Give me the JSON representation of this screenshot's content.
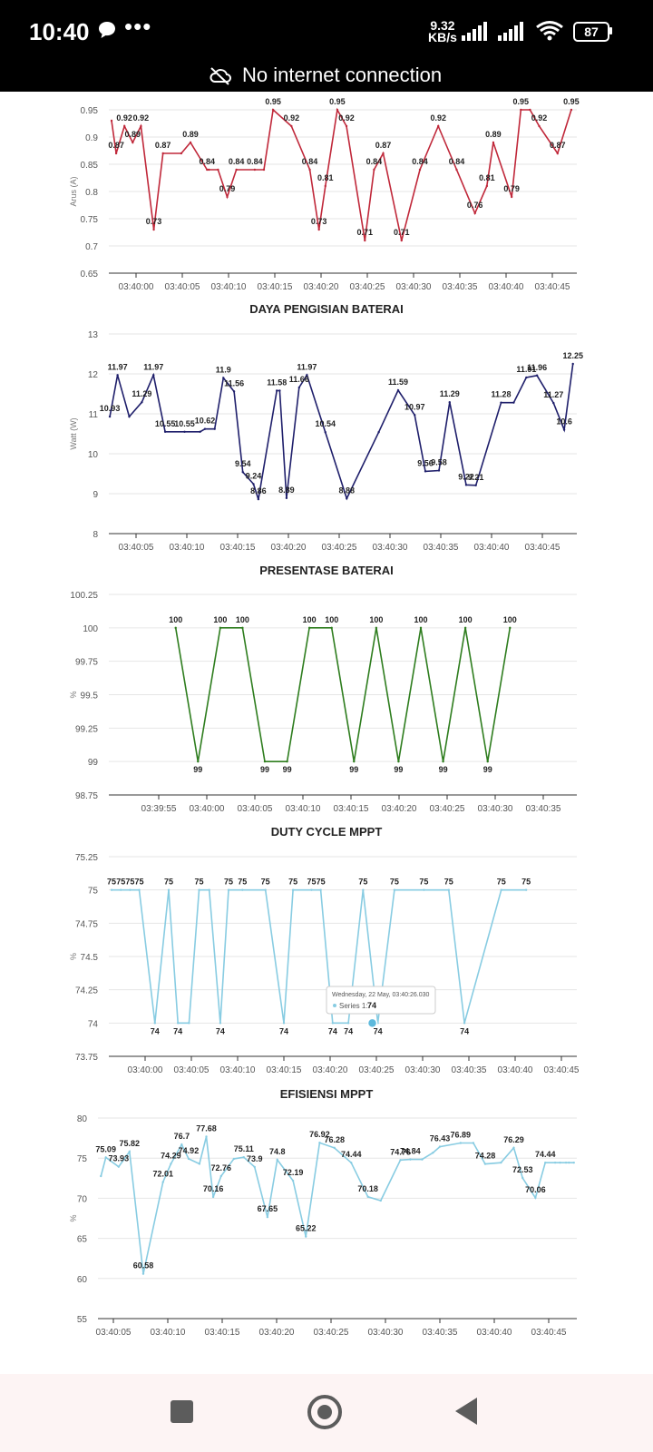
{
  "status_bar": {
    "time": "10:40",
    "net_speed_value": "9.32",
    "net_speed_unit": "KB/s",
    "battery_level": "87",
    "icons": [
      "message-icon",
      "more-dots-icon",
      "signal-icon",
      "signal-icon",
      "wifi-icon",
      "battery-icon"
    ]
  },
  "network_banner": {
    "text": "No internet connection",
    "icon": "cloud-off-icon"
  },
  "chart_data": [
    {
      "type": "line",
      "title": "",
      "ylabel": "Arus (A)",
      "color": "#c0283a",
      "ylim": [
        0.65,
        0.95
      ],
      "yticks": [
        "0.95",
        "0.9",
        "0.85",
        "0.8",
        "0.75",
        "0.7",
        "0.65"
      ],
      "xticks": [
        "03:40:00",
        "03:40:05",
        "03:40:10",
        "03:40:15",
        "03:40:20",
        "03:40:25",
        "03:40:30",
        "03:40:35",
        "03:40:40",
        "03:40:45"
      ],
      "x_range": [
        -2.9,
        48.1
      ],
      "x": [
        -2.6,
        -2.1,
        -1.2,
        -0.3,
        0.6,
        2,
        3,
        5,
        6,
        7.8,
        8,
        9,
        10,
        11,
        13,
        14,
        15,
        17,
        19,
        20,
        20.7,
        22,
        23,
        25,
        26,
        27,
        29,
        31,
        33,
        35,
        37,
        38.3,
        39,
        41,
        42,
        43,
        44,
        46,
        47.5
      ],
      "values": [
        0.93,
        0.87,
        0.92,
        0.89,
        0.92,
        0.73,
        0.87,
        0.87,
        0.89,
        0.84,
        0.84,
        0.84,
        0.79,
        0.84,
        0.84,
        0.84,
        0.95,
        0.92,
        0.84,
        0.73,
        0.81,
        0.95,
        0.92,
        0.71,
        0.84,
        0.87,
        0.71,
        0.84,
        0.92,
        0.84,
        0.76,
        0.81,
        0.89,
        0.79,
        0.95,
        0.95,
        0.92,
        0.87,
        0.95
      ],
      "labels": [
        "",
        "0.87",
        "0.92",
        "0.89",
        "0.92",
        "0.73",
        "0.87",
        "",
        "0.89",
        "0.84",
        "",
        "",
        "0.79",
        "0.84",
        "0.84",
        "",
        "0.95",
        "0.92",
        "0.84",
        "0.73",
        "0.81",
        "0.95",
        "0.92",
        "0.71",
        "0.84",
        "0.87",
        "0.71",
        "0.84",
        "0.92",
        "0.84",
        "0.76",
        "0.81",
        "0.89",
        "0.79",
        "0.95",
        "",
        "0.92",
        "0.87",
        "0.95"
      ]
    },
    {
      "type": "line",
      "title": "DAYA PENGISIAN BATERAI",
      "ylabel": "Watt (W)",
      "color": "#1f1f6b",
      "ylim": [
        8,
        13
      ],
      "yticks": [
        "13",
        "12",
        "11",
        "10",
        "9",
        "8"
      ],
      "xticks": [
        "03:40:05",
        "03:40:10",
        "03:40:15",
        "03:40:20",
        "03:40:25",
        "03:40:30",
        "03:40:35",
        "03:40:40",
        "03:40:45"
      ],
      "x_range": [
        0.4,
        48.6
      ],
      "x": [
        0.5,
        1.3,
        2.5,
        3.8,
        5,
        6.2,
        8.2,
        9.8,
        10.3,
        11.3,
        12.2,
        13.3,
        14.2,
        15.3,
        15.8,
        17.7,
        18,
        18.7,
        20,
        20.8,
        22.7,
        24.9,
        28.2,
        30.2,
        31.9,
        33,
        34.4,
        35.5,
        37.2,
        38.2,
        40.8,
        42.1,
        43.4,
        44.5,
        46.2,
        47.3,
        48.2
      ],
      "values": [
        10.93,
        11.97,
        10.93,
        11.29,
        11.97,
        10.55,
        10.55,
        10.55,
        10.62,
        10.62,
        11.9,
        11.56,
        9.54,
        9.24,
        8.86,
        11.58,
        11.58,
        8.89,
        11.66,
        11.97,
        10.54,
        8.88,
        10.54,
        11.59,
        10.97,
        9.56,
        9.58,
        11.29,
        9.22,
        9.21,
        11.28,
        11.28,
        11.91,
        11.96,
        11.27,
        10.6,
        12.25
      ],
      "labels": [
        "10.93",
        "11.97",
        "",
        "11.29",
        "11.97",
        "10.55",
        "10.55",
        "",
        "10.62",
        "",
        "11.9",
        "11.56",
        "9.54",
        "9.24",
        "8.86",
        "11.58",
        "",
        "8.89",
        "11.66",
        "11.97",
        "10.54",
        "8.88",
        "",
        "11.59",
        "10.97",
        "9.56",
        "9.58",
        "11.29",
        "9.22",
        "9.21",
        "11.28",
        "",
        "11.91",
        "11.96",
        "11.27",
        "10.6",
        "12.25"
      ]
    },
    {
      "type": "line",
      "title": "PRESENTASE BATERAI",
      "ylabel": "%",
      "color": "#2e7d1e",
      "ylim": [
        98.75,
        100.25
      ],
      "yticks": [
        "100.25",
        "100",
        "99.75",
        "99.5",
        "99.25",
        "99",
        "98.75"
      ],
      "xticks": [
        "03:39:55",
        "03:40:00",
        "03:40:05",
        "03:40:10",
        "03:40:15",
        "03:40:20",
        "03:40:25",
        "03:40:30",
        "03:40:35"
      ],
      "x_range": [
        -61.3,
        -59.2
      ],
      "x": [
        -61.0,
        -60.9,
        -60.8,
        -60.7,
        -60.6,
        -60.5,
        -60.4,
        -60.3,
        -60.2,
        -60.1,
        -60.0,
        -59.9,
        -59.8,
        -59.7,
        -59.6,
        -59.5
      ],
      "values": [
        100,
        99,
        100,
        100,
        99,
        99,
        100,
        100,
        99,
        100,
        99,
        100,
        99,
        100,
        99,
        100
      ],
      "labels": [
        "100",
        "99",
        "100",
        "100",
        "99",
        "99",
        "100",
        "100",
        "99",
        "100",
        "99",
        "100",
        "99",
        "100",
        "99",
        "100"
      ]
    },
    {
      "type": "line",
      "title": "DUTY CYCLE MPPT",
      "ylabel": "%",
      "color": "#88cce2",
      "ylim": [
        73.75,
        75.25
      ],
      "yticks": [
        "75.25",
        "75",
        "74.75",
        "74.5",
        "74.25",
        "74",
        "73.75"
      ],
      "xticks": [
        "03:40:00",
        "03:40:05",
        "03:40:10",
        "03:40:15",
        "03:40:20",
        "03:40:25",
        "03:40:30",
        "03:40:35",
        "03:40:40",
        "03:40:45"
      ],
      "x_range": [
        -2.5,
        48.3
      ],
      "x": [
        -2.2,
        -1.2,
        -0.2,
        0.8,
        2.5,
        4,
        5,
        6.2,
        7.3,
        8.4,
        9.6,
        10.5,
        12,
        14.5,
        16.5,
        17.5,
        19.5,
        20.5,
        21.8,
        23.5,
        25.1,
        26.7,
        28.5,
        31.7,
        34.4,
        36.1,
        40.1,
        42.8
      ],
      "values": [
        75,
        75,
        75,
        75,
        74,
        75,
        74,
        74,
        75,
        75,
        74,
        75,
        75,
        75,
        74,
        75,
        75,
        75,
        74,
        74,
        75,
        74,
        75,
        75,
        75,
        74,
        75,
        75
      ],
      "labels": [
        "75",
        "75",
        "75",
        "75",
        "74",
        "75",
        "74",
        "",
        "75",
        "",
        "74",
        "75",
        "75",
        "75",
        "74",
        "75",
        "75",
        "75",
        "74",
        "74",
        "75",
        "74",
        "75",
        "75",
        "75",
        "74",
        "75",
        "75"
      ],
      "tooltip": {
        "date": "Wednesday, 22 May, 03:40:26.030",
        "series": "Series 1:",
        "value": "74"
      }
    },
    {
      "type": "line",
      "title": "EFISIENSI MPPT",
      "ylabel": "%",
      "color": "#88cce2",
      "ylim": [
        55,
        80
      ],
      "yticks": [
        "80",
        "75",
        "70",
        "65",
        "60",
        "55"
      ],
      "xticks": [
        "03:40:05",
        "03:40:10",
        "03:40:15",
        "03:40:20",
        "03:40:25",
        "03:40:30",
        "03:40:35",
        "03:40:40",
        "03:40:45"
      ],
      "x_range": [
        4.8,
        53.4
      ],
      "x": [
        5.1,
        5.6,
        6.9,
        8,
        9.4,
        11.4,
        12.2,
        13.3,
        14,
        15.1,
        15.8,
        16.5,
        17.3,
        18.6,
        19.6,
        20.7,
        22,
        23,
        24.6,
        25.9,
        27.3,
        28.8,
        30.5,
        32.2,
        33.5,
        35.5,
        36.5,
        37.7,
        38.8,
        39.5,
        41.6,
        42.9,
        44.1,
        45.7,
        47,
        47.9,
        49.2,
        50.2,
        51.2,
        51.7,
        52.3,
        52.6,
        53.1
      ],
      "values": [
        72.76,
        75.09,
        73.93,
        75.82,
        60.58,
        72.01,
        74.29,
        76.7,
        74.92,
        74.29,
        77.68,
        70.16,
        72.76,
        74.92,
        75.11,
        73.9,
        67.65,
        74.8,
        72.19,
        65.22,
        76.92,
        76.28,
        74.44,
        70.18,
        69.71,
        74.76,
        74.84,
        74.84,
        75.68,
        76.43,
        76.89,
        76.89,
        74.28,
        74.44,
        76.29,
        72.53,
        70.06,
        74.44,
        74.44,
        74.44,
        74.44,
        74.44,
        74.44
      ],
      "labels": [
        "",
        "75.09",
        "73.93",
        "75.82",
        "60.58",
        "72.01",
        "74.29",
        "76.7",
        "74.92",
        "",
        "77.68",
        "70.16",
        "72.76",
        "",
        "75.11",
        "73.9",
        "67.65",
        "74.8",
        "72.19",
        "65.22",
        "76.92",
        "76.28",
        "74.44",
        "70.18",
        "",
        "74.76",
        "74.84",
        "",
        "",
        "76.43",
        "76.89",
        "",
        "74.28",
        "",
        "76.29",
        "72.53",
        "70.06",
        "74.44",
        "",
        "",
        "",
        "",
        ""
      ]
    }
  ]
}
